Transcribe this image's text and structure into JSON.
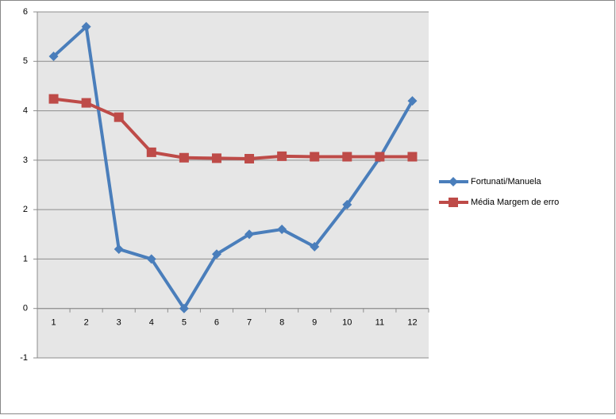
{
  "chart_data": {
    "type": "line",
    "categories": [
      "1",
      "2",
      "3",
      "4",
      "5",
      "6",
      "7",
      "8",
      "9",
      "10",
      "11",
      "12"
    ],
    "series": [
      {
        "name": "Fortunati/Manuela",
        "color": "#4a7ebb",
        "marker": "diamond",
        "values": [
          5.1,
          5.7,
          1.2,
          1.0,
          0,
          1.1,
          1.5,
          1.6,
          1.25,
          2.1,
          3.05,
          4.2
        ]
      },
      {
        "name": "Média Margem  de erro",
        "color": "#be4b48",
        "marker": "square",
        "values": [
          4.24,
          4.16,
          3.87,
          3.16,
          3.05,
          3.04,
          3.03,
          3.08,
          3.07,
          3.07,
          3.07,
          3.07
        ]
      }
    ],
    "ylim": [
      -1,
      6
    ],
    "yticks": [
      -1,
      0,
      1,
      2,
      3,
      4,
      5,
      6
    ],
    "grid": true,
    "legend": "right"
  }
}
